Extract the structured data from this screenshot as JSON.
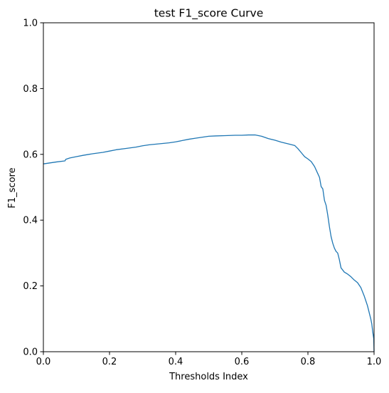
{
  "chart_data": {
    "type": "line",
    "title": "test F1_score Curve",
    "xlabel": "Thresholds Index",
    "ylabel": "F1_score",
    "xlim": [
      0.0,
      1.0
    ],
    "ylim": [
      0.0,
      1.0
    ],
    "xticks": [
      0.0,
      0.2,
      0.4,
      0.6,
      0.8,
      1.0
    ],
    "yticks": [
      0.0,
      0.2,
      0.4,
      0.6,
      0.8,
      1.0
    ],
    "xtick_labels": [
      "0.0",
      "0.2",
      "0.4",
      "0.6",
      "0.8",
      "1.0"
    ],
    "ytick_labels": [
      "0.0",
      "0.2",
      "0.4",
      "0.6",
      "0.8",
      "1.0"
    ],
    "grid": false,
    "legend": false,
    "series": [
      {
        "color": "#1f77b4",
        "x": [
          0.0,
          0.02,
          0.04,
          0.065,
          0.068,
          0.08,
          0.1,
          0.12,
          0.15,
          0.18,
          0.2,
          0.22,
          0.25,
          0.28,
          0.3,
          0.32,
          0.35,
          0.38,
          0.4,
          0.42,
          0.44,
          0.46,
          0.48,
          0.5,
          0.52,
          0.55,
          0.58,
          0.6,
          0.62,
          0.64,
          0.66,
          0.68,
          0.7,
          0.72,
          0.74,
          0.76,
          0.77,
          0.78,
          0.79,
          0.8,
          0.81,
          0.82,
          0.83,
          0.835,
          0.84,
          0.845,
          0.85,
          0.855,
          0.86,
          0.865,
          0.87,
          0.875,
          0.88,
          0.885,
          0.89,
          0.895,
          0.9,
          0.91,
          0.92,
          0.93,
          0.94,
          0.95,
          0.96,
          0.97,
          0.975,
          0.98,
          0.985,
          0.99,
          0.993,
          0.996,
          0.999,
          1.0
        ],
        "y": [
          0.571,
          0.574,
          0.577,
          0.58,
          0.585,
          0.589,
          0.593,
          0.597,
          0.602,
          0.606,
          0.61,
          0.614,
          0.618,
          0.622,
          0.626,
          0.629,
          0.632,
          0.635,
          0.638,
          0.642,
          0.646,
          0.649,
          0.652,
          0.655,
          0.656,
          0.657,
          0.658,
          0.658,
          0.659,
          0.659,
          0.655,
          0.648,
          0.643,
          0.637,
          0.632,
          0.627,
          0.617,
          0.605,
          0.593,
          0.586,
          0.578,
          0.563,
          0.541,
          0.53,
          0.502,
          0.495,
          0.46,
          0.445,
          0.415,
          0.38,
          0.35,
          0.33,
          0.315,
          0.305,
          0.3,
          0.28,
          0.255,
          0.242,
          0.236,
          0.228,
          0.218,
          0.21,
          0.195,
          0.17,
          0.155,
          0.14,
          0.12,
          0.1,
          0.085,
          0.06,
          0.04,
          0.0
        ]
      }
    ]
  }
}
